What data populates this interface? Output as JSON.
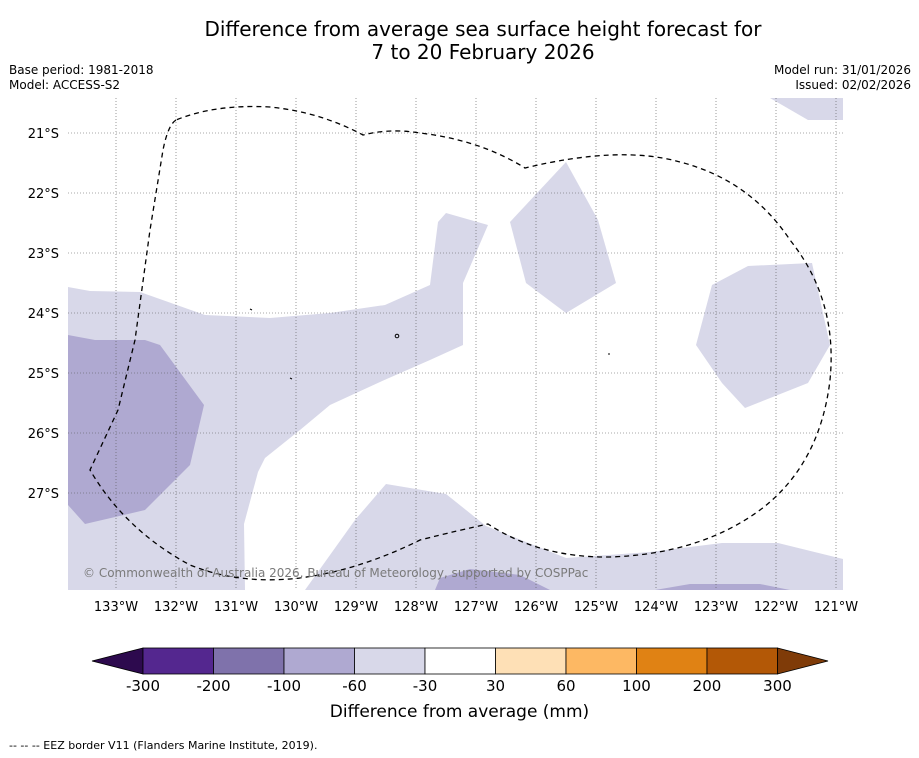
{
  "title": {
    "line1": "Difference from average sea surface height forecast for",
    "line2": "7 to 20 February 2026"
  },
  "meta": {
    "base_period": "Base period: 1981-2018",
    "model": "Model: ACCESS-S2",
    "model_run": "Model run: 31/01/2026",
    "issued": "Issued: 02/02/2026"
  },
  "map": {
    "lat_labels": [
      "21°S",
      "22°S",
      "23°S",
      "24°S",
      "25°S",
      "26°S",
      "27°S"
    ],
    "lon_labels": [
      "133°W",
      "132°W",
      "131°W",
      "130°W",
      "129°W",
      "128°W",
      "127°W",
      "126°W",
      "125°W",
      "124°W",
      "123°W",
      "122°W",
      "121°W"
    ],
    "copyright": "© Commonwealth of Australia 2026, Bureau of Meteorology, supported by COSPPac"
  },
  "colorbar": {
    "title": "Difference from average (mm)",
    "tick_labels": [
      "-300",
      "-200",
      "-100",
      "-60",
      "-30",
      "30",
      "60",
      "100",
      "200",
      "300"
    ],
    "bins": [
      {
        "range": "< -300",
        "color": "#2d0a4e"
      },
      {
        "range": "-300 to -200",
        "color": "#54278f"
      },
      {
        "range": "-200 to -100",
        "color": "#7f72ab"
      },
      {
        "range": "-100 to -60",
        "color": "#afa9d1"
      },
      {
        "range": "-60 to -30",
        "color": "#d8d8e9"
      },
      {
        "range": "-30 to 30",
        "color": "#ffffff"
      },
      {
        "range": "30 to 60",
        "color": "#fee0b6"
      },
      {
        "range": "60 to 100",
        "color": "#fdb863"
      },
      {
        "range": "100 to 200",
        "color": "#e08214"
      },
      {
        "range": "200 to 300",
        "color": "#b35806"
      },
      {
        "range": "> 300",
        "color": "#7f3b08"
      }
    ]
  },
  "legend": {
    "eez_text": "--  --  -- EEZ border V11 (Flanders Marine Institute, 2019)."
  }
}
